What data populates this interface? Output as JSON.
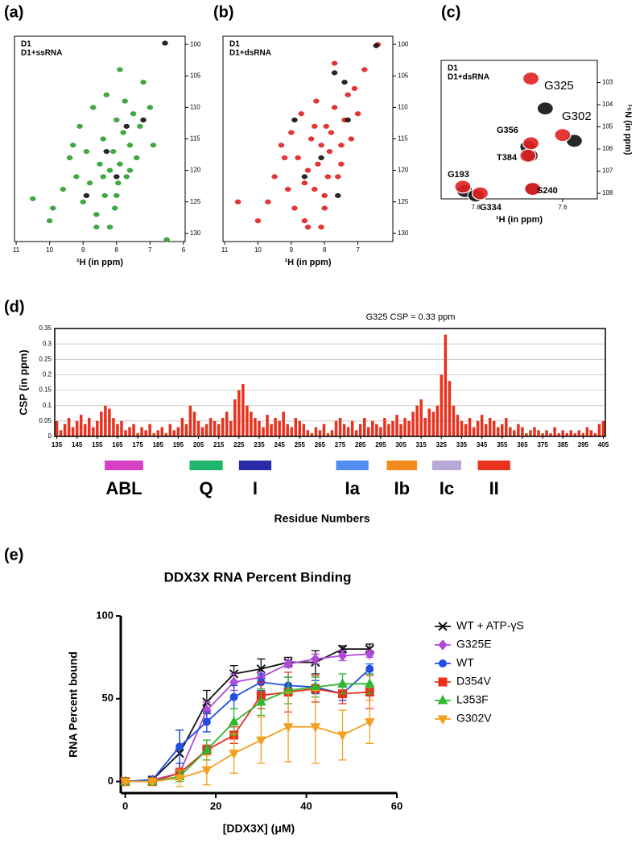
{
  "chart_data": [
    {
      "type": "scatter",
      "panel": "(a)",
      "xlabel": "¹H (in ppm)",
      "xlim": [
        5.95,
        11.05
      ],
      "x_inverted": true,
      "xticks": [
        11,
        10,
        9,
        8,
        7,
        6
      ],
      "ylim": [
        98.7,
        131.3
      ],
      "y_inverted": true,
      "yticks": [
        100,
        105,
        110,
        115,
        120,
        125,
        130
      ],
      "series": [
        {
          "name": "D1+ssRNA",
          "color": "#2e9e2e",
          "x": [
            10.5,
            10.0,
            9.9,
            9.6,
            9.4,
            9.2,
            9.1,
            9.0,
            8.9,
            8.8,
            8.7,
            8.6,
            8.5,
            8.4,
            8.35,
            8.3,
            8.2,
            8.1,
            8.05,
            8.0,
            7.95,
            7.9,
            7.8,
            7.75,
            7.7,
            7.6,
            7.5,
            7.4,
            7.3,
            7.2,
            7.0,
            6.9,
            6.5,
            8.6,
            8.2,
            7.9,
            8.4,
            8.0,
            7.6,
            9.3
          ],
          "y": [
            124.5,
            128,
            126,
            123,
            118,
            121,
            113,
            125,
            117,
            122,
            110,
            127,
            119,
            115,
            124,
            108,
            120,
            117,
            126,
            112,
            122,
            119,
            114,
            109,
            121,
            116,
            111,
            118,
            113,
            106,
            110,
            116,
            131,
            129,
            129,
            104,
            121,
            124,
            120,
            116
          ]
        },
        {
          "name": "D1",
          "color": "#111111",
          "x": [
            6.55,
            8.3,
            8.0,
            7.7,
            8.9,
            7.2
          ],
          "y": [
            99.8,
            117,
            121,
            113,
            124,
            112
          ]
        }
      ]
    },
    {
      "type": "scatter",
      "panel": "(b)",
      "xlabel": "¹H (in ppm)",
      "xlim": [
        5.95,
        11.05
      ],
      "x_inverted": true,
      "xticks": [
        11,
        10,
        9,
        8,
        7
      ],
      "ylim": [
        98.7,
        131.3
      ],
      "y_inverted": true,
      "yticks": [
        100,
        105,
        110,
        115,
        120,
        125,
        130
      ],
      "series": [
        {
          "name": "D1+dsRNA",
          "color": "#e02020",
          "x": [
            10.6,
            10.0,
            9.7,
            9.5,
            9.3,
            9.1,
            9.0,
            8.9,
            8.8,
            8.7,
            8.6,
            8.5,
            8.4,
            8.3,
            8.25,
            8.2,
            8.1,
            8.0,
            7.95,
            7.9,
            7.85,
            7.8,
            7.7,
            7.6,
            7.5,
            7.4,
            7.3,
            7.2,
            7.1,
            7.0,
            6.8,
            6.4,
            8.5,
            8.1,
            7.7,
            8.6,
            8.0,
            7.5,
            9.2,
            8.3
          ],
          "y": [
            125,
            128,
            125,
            121,
            116,
            123,
            114,
            126,
            118,
            111,
            128,
            120,
            115,
            123,
            109,
            119,
            116,
            126,
            113,
            121,
            117,
            114,
            110,
            121,
            116,
            112,
            108,
            115,
            107,
            111,
            104,
            100,
            129,
            129,
            103,
            122,
            124,
            119,
            118,
            113
          ]
        },
        {
          "name": "D1",
          "color": "#111111",
          "x": [
            6.45,
            7.7,
            8.1,
            8.6,
            7.4,
            7.6,
            8.9,
            7.3
          ],
          "y": [
            100.2,
            104.5,
            118,
            121,
            106,
            124,
            112,
            112
          ]
        }
      ]
    },
    {
      "type": "scatter",
      "panel": "(c)",
      "xlabel": "¹H (in ppm)",
      "ylabel": "¹⁵N (in ppm)",
      "xlim": [
        7.52,
        7.88
      ],
      "x_inverted": true,
      "xticks": [
        7.8,
        7.6
      ],
      "ylim": [
        102,
        108.25
      ],
      "y_inverted": true,
      "yticks": [
        103,
        104,
        105,
        106,
        107,
        108
      ],
      "large_peaks": true,
      "series": [
        {
          "name": "D1",
          "color": "#111111",
          "x": [
            7.64,
            7.573,
            7.68,
            7.675,
            7.825,
            7.8,
            7.67
          ],
          "y": [
            104.17,
            105.63,
            105.9,
            106.3,
            107.9,
            108.1,
            107.8
          ]
        },
        {
          "name": "D1+dsRNA",
          "color": "#e02020",
          "x": [
            7.673,
            7.6,
            7.673,
            7.68,
            7.83,
            7.79,
            7.669
          ],
          "y": [
            102.82,
            105.37,
            105.74,
            106.3,
            107.7,
            108.0,
            107.8
          ]
        }
      ],
      "annotations": [
        {
          "text": "G325",
          "color": "#e02020"
        },
        {
          "text": "G302",
          "color": "#e02020"
        },
        {
          "text": "G356",
          "color": "#111111"
        },
        {
          "text": "T384",
          "color": "#111111"
        },
        {
          "text": "S240",
          "color": "#111111"
        },
        {
          "text": "G193",
          "color": "#111111"
        },
        {
          "text": "G334",
          "color": "#111111"
        }
      ]
    },
    {
      "type": "bar",
      "panel": "(d)",
      "annotation": "G325 CSP = 0.33 ppm",
      "ylabel": "CSP (in ppm)",
      "xlabel": "Residue Numbers",
      "color": "#e8321e",
      "grid": true,
      "xlim": [
        134,
        406
      ],
      "xticks": [
        135,
        145,
        155,
        165,
        175,
        185,
        195,
        205,
        215,
        225,
        235,
        245,
        255,
        265,
        275,
        285,
        295,
        305,
        315,
        325,
        335,
        345,
        355,
        365,
        375,
        385,
        395,
        405
      ],
      "ylim": [
        0,
        0.35
      ],
      "yticks": [
        0,
        0.05,
        0.1,
        0.15,
        0.2,
        0.25,
        0.3,
        0.35
      ],
      "x": [
        135,
        137,
        139,
        141,
        143,
        145,
        147,
        149,
        151,
        153,
        155,
        157,
        159,
        161,
        163,
        165,
        167,
        169,
        171,
        173,
        175,
        177,
        179,
        181,
        183,
        185,
        187,
        189,
        191,
        193,
        195,
        197,
        199,
        201,
        203,
        205,
        207,
        209,
        211,
        213,
        215,
        217,
        219,
        221,
        223,
        225,
        227,
        229,
        231,
        233,
        235,
        237,
        239,
        241,
        243,
        245,
        247,
        249,
        251,
        253,
        255,
        257,
        259,
        261,
        263,
        265,
        267,
        269,
        271,
        273,
        275,
        277,
        279,
        281,
        283,
        285,
        287,
        289,
        291,
        293,
        295,
        297,
        299,
        301,
        303,
        305,
        307,
        309,
        311,
        313,
        315,
        317,
        319,
        321,
        323,
        325,
        327,
        329,
        331,
        333,
        335,
        337,
        339,
        341,
        343,
        345,
        347,
        349,
        351,
        353,
        355,
        357,
        359,
        361,
        363,
        365,
        367,
        369,
        371,
        373,
        375,
        377,
        379,
        381,
        383,
        385,
        387,
        389,
        391,
        393,
        395,
        397,
        399,
        401,
        403,
        405
      ],
      "values": [
        0.05,
        0.02,
        0.04,
        0.06,
        0.03,
        0.05,
        0.07,
        0.04,
        0.06,
        0.03,
        0.05,
        0.08,
        0.1,
        0.09,
        0.06,
        0.04,
        0.05,
        0.02,
        0.03,
        0.04,
        0.01,
        0.03,
        0.02,
        0.04,
        0.01,
        0.02,
        0.03,
        0.01,
        0.04,
        0.02,
        0.03,
        0.06,
        0.04,
        0.1,
        0.08,
        0.05,
        0.03,
        0.04,
        0.06,
        0.05,
        0.04,
        0.06,
        0.08,
        0.05,
        0.12,
        0.15,
        0.17,
        0.1,
        0.08,
        0.06,
        0.05,
        0.03,
        0.07,
        0.04,
        0.06,
        0.05,
        0.08,
        0.04,
        0.03,
        0.06,
        0.05,
        0.04,
        0.02,
        0.01,
        0.03,
        0.02,
        0.04,
        0.01,
        0.02,
        0.05,
        0.06,
        0.04,
        0.03,
        0.05,
        0.02,
        0.04,
        0.06,
        0.03,
        0.05,
        0.04,
        0.03,
        0.06,
        0.04,
        0.05,
        0.07,
        0.04,
        0.06,
        0.05,
        0.08,
        0.1,
        0.12,
        0.06,
        0.09,
        0.08,
        0.1,
        0.2,
        0.33,
        0.18,
        0.1,
        0.07,
        0.05,
        0.04,
        0.06,
        0.03,
        0.05,
        0.07,
        0.04,
        0.06,
        0.05,
        0.03,
        0.04,
        0.06,
        0.03,
        0.02,
        0.04,
        0.03,
        0.01,
        0.02,
        0.03,
        0.02,
        0.01,
        0.02,
        0.01,
        0.03,
        0.01,
        0.02,
        0.01,
        0.02,
        0.01,
        0.02,
        0.01,
        0.03,
        0.02,
        0.01,
        0.04,
        0.05
      ],
      "motifs": [
        {
          "label": "ABL",
          "color": "#d640c4",
          "start": 158.7,
          "end": 177.7
        },
        {
          "label": "Q",
          "color": "#1fb56b",
          "start": 200.6,
          "end": 217
        },
        {
          "label": "I",
          "color": "#2a2aa8",
          "start": 225,
          "end": 241
        },
        {
          "label": "Ia",
          "color": "#4f8ef0",
          "start": 273,
          "end": 289
        },
        {
          "label": "Ib",
          "color": "#f28a1e",
          "start": 298,
          "end": 313
        },
        {
          "label": "Ic",
          "color": "#b8a8d8",
          "start": 320.5,
          "end": 334.8
        },
        {
          "label": "II",
          "color": "#e8321e",
          "start": 343,
          "end": 359
        }
      ]
    },
    {
      "type": "line",
      "panel": "(e)",
      "title": "DDX3X RNA Percent Binding",
      "xlabel": "[DDX3X] (μM)",
      "ylabel": "RNA Percent bound",
      "xlim": [
        -1,
        60
      ],
      "xticks": [
        0,
        20,
        40,
        60
      ],
      "ylim": [
        -7,
        100
      ],
      "yticks": [
        0,
        50,
        100
      ],
      "x": [
        0,
        6,
        12,
        18,
        24,
        30,
        36,
        42,
        48,
        54
      ],
      "series": [
        {
          "name": "WT + ATP-γS",
          "color": "#111111",
          "marker": "x",
          "values": [
            0,
            1,
            17,
            48,
            65,
            68,
            72,
            72,
            80,
            80
          ],
          "errors": [
            1,
            2,
            14,
            7,
            5,
            6,
            3,
            7,
            2,
            3
          ]
        },
        {
          "name": "G325E",
          "color": "#b04ad8",
          "marker": "diamond",
          "values": [
            0,
            1,
            5,
            43,
            60,
            63,
            71,
            74,
            76,
            77
          ],
          "errors": [
            1,
            1,
            2,
            5,
            5,
            3,
            2,
            3,
            3,
            2
          ]
        },
        {
          "name": "WT",
          "color": "#1f4ee0",
          "marker": "circle",
          "values": [
            0,
            1,
            21,
            36,
            51,
            60,
            58,
            57,
            53,
            68
          ],
          "errors": [
            1,
            1,
            10,
            6,
            7,
            5,
            5,
            4,
            4,
            3
          ]
        },
        {
          "name": "D354V",
          "color": "#e8301e",
          "marker": "square",
          "values": [
            0,
            0,
            5,
            19,
            28,
            52,
            54,
            56,
            53,
            54
          ],
          "errors": [
            1,
            1,
            3,
            3,
            5,
            8,
            12,
            8,
            6,
            10
          ]
        },
        {
          "name": "L353F",
          "color": "#2fb82f",
          "marker": "triangle",
          "values": [
            0,
            0,
            3,
            19,
            36,
            48,
            55,
            57,
            59,
            59
          ],
          "errors": [
            1,
            1,
            3,
            6,
            8,
            8,
            8,
            6,
            6,
            6
          ]
        },
        {
          "name": "G302V",
          "color": "#f2a020",
          "marker": "triangle-down",
          "values": [
            0,
            0,
            2,
            7,
            17,
            25,
            33,
            33,
            28,
            36
          ],
          "errors": [
            1,
            1,
            5,
            9,
            12,
            14,
            21,
            22,
            15,
            13
          ]
        }
      ]
    }
  ]
}
